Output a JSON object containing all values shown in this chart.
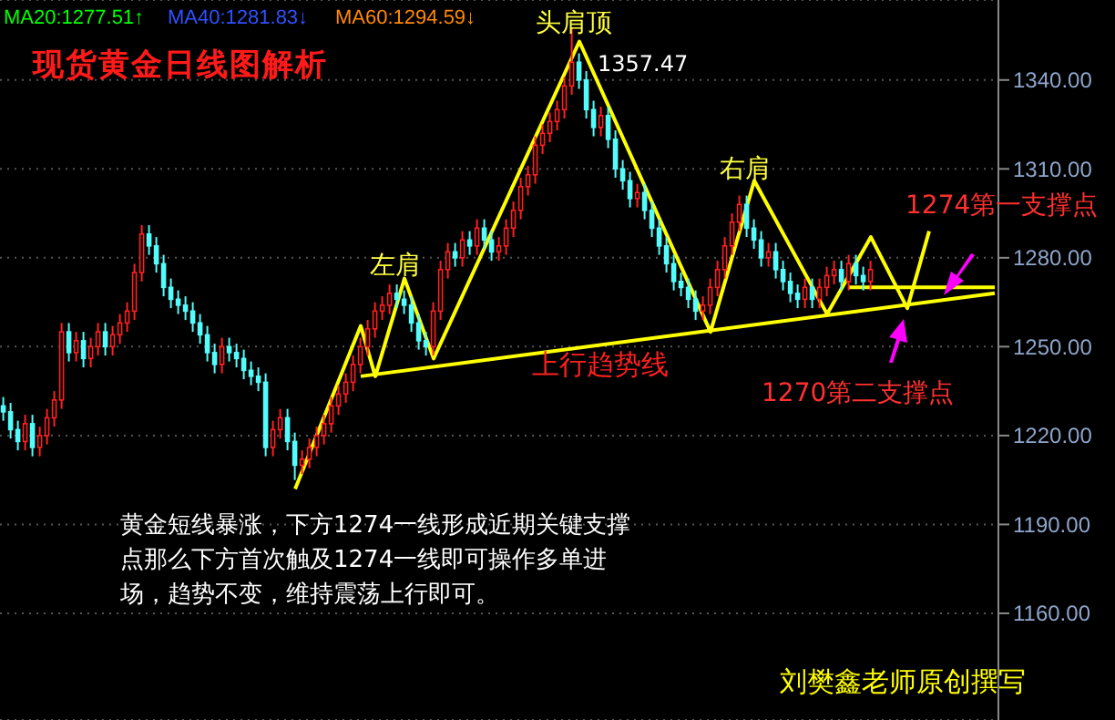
{
  "chart_data": {
    "type": "candlestick",
    "title": "现货黄金日线图解析",
    "annotations": [
      "MA20:1277.51↑",
      "MA40:1281.83↓",
      "MA60:1294.59↓",
      "头肩顶",
      "1357.47",
      "左肩",
      "右肩",
      "上行趋势线",
      "1274第一支撑点",
      "1270第二支撑点",
      "黄金短线暴涨，下方1274一线形成近期关键支撑点那么下方首次触及1274一线即可操作多单进场，趋势不变，维持震荡上行即可。",
      "刘樊鑫老师原创撰写"
    ],
    "categories": [
      null,
      null,
      null,
      null,
      null,
      null,
      null,
      null,
      null,
      null,
      null,
      null,
      null,
      null,
      null,
      null,
      null,
      null,
      null,
      null,
      null,
      null,
      null,
      null,
      null,
      null,
      null,
      null,
      null,
      null,
      null,
      null,
      null,
      null,
      null,
      null,
      null,
      null,
      null,
      null,
      null,
      null,
      null,
      null,
      null,
      null,
      null,
      null,
      null,
      null,
      null,
      null,
      null,
      null,
      null,
      null,
      null,
      null,
      null,
      null,
      null,
      null,
      null,
      null,
      null,
      null,
      null,
      null,
      null,
      null,
      null,
      null,
      null,
      null,
      null,
      null,
      null,
      null,
      null,
      null,
      null,
      null,
      null,
      null,
      null,
      null,
      null,
      null,
      null,
      null,
      null,
      null,
      null,
      null,
      null,
      null,
      null,
      null,
      null,
      null,
      null,
      null,
      null,
      null,
      null,
      null,
      null,
      null,
      null,
      null,
      null,
      null,
      null,
      null,
      null,
      null,
      null,
      null,
      null,
      null,
      null,
      null,
      null,
      null,
      null,
      null,
      null,
      null,
      null,
      null,
      null,
      null,
      null,
      null,
      null,
      null,
      null
    ],
    "ohlc": [
      [
        1230,
        1233,
        1225,
        1228
      ],
      [
        1228,
        1231,
        1219,
        1222
      ],
      [
        1222,
        1225,
        1215,
        1218
      ],
      [
        1218,
        1227,
        1215,
        1224
      ],
      [
        1224,
        1227,
        1213,
        1216
      ],
      [
        1216,
        1223,
        1213,
        1220
      ],
      [
        1220,
        1229,
        1217,
        1226
      ],
      [
        1226,
        1235,
        1223,
        1232
      ],
      [
        1232,
        1258,
        1229,
        1255
      ],
      [
        1255,
        1258,
        1245,
        1248
      ],
      [
        1248,
        1255,
        1245,
        1252
      ],
      [
        1252,
        1255,
        1243,
        1246
      ],
      [
        1246,
        1253,
        1243,
        1250
      ],
      [
        1250,
        1258,
        1247,
        1255
      ],
      [
        1255,
        1258,
        1247,
        1250
      ],
      [
        1250,
        1257,
        1247,
        1254
      ],
      [
        1254,
        1261,
        1251,
        1258
      ],
      [
        1258,
        1265,
        1255,
        1262
      ],
      [
        1262,
        1278,
        1259,
        1275
      ],
      [
        1275,
        1291,
        1272,
        1288
      ],
      [
        1288,
        1291,
        1281,
        1284
      ],
      [
        1284,
        1287,
        1275,
        1278
      ],
      [
        1278,
        1281,
        1267,
        1270
      ],
      [
        1270,
        1273,
        1263,
        1266
      ],
      [
        1266,
        1269,
        1261,
        1264
      ],
      [
        1264,
        1267,
        1259,
        1262
      ],
      [
        1262,
        1265,
        1255,
        1258
      ],
      [
        1258,
        1261,
        1251,
        1254
      ],
      [
        1254,
        1257,
        1245,
        1248
      ],
      [
        1248,
        1251,
        1241,
        1244
      ],
      [
        1244,
        1253,
        1241,
        1250
      ],
      [
        1250,
        1253,
        1245,
        1248
      ],
      [
        1248,
        1251,
        1243,
        1246
      ],
      [
        1246,
        1249,
        1239,
        1242
      ],
      [
        1242,
        1245,
        1237,
        1240
      ],
      [
        1240,
        1243,
        1235,
        1238
      ],
      [
        1238,
        1241,
        1213,
        1216
      ],
      [
        1216,
        1225,
        1213,
        1222
      ],
      [
        1222,
        1229,
        1219,
        1226
      ],
      [
        1226,
        1229,
        1215,
        1218
      ],
      [
        1218,
        1221,
        1205,
        1210
      ],
      [
        1210,
        1215,
        1207,
        1212
      ],
      [
        1212,
        1219,
        1209,
        1216
      ],
      [
        1216,
        1223,
        1213,
        1220
      ],
      [
        1220,
        1227,
        1217,
        1224
      ],
      [
        1224,
        1233,
        1221,
        1230
      ],
      [
        1230,
        1237,
        1227,
        1234
      ],
      [
        1234,
        1241,
        1231,
        1238
      ],
      [
        1238,
        1247,
        1235,
        1244
      ],
      [
        1244,
        1253,
        1241,
        1250
      ],
      [
        1250,
        1259,
        1247,
        1256
      ],
      [
        1256,
        1265,
        1253,
        1262
      ],
      [
        1262,
        1267,
        1259,
        1264
      ],
      [
        1264,
        1271,
        1261,
        1268
      ],
      [
        1268,
        1271,
        1263,
        1266
      ],
      [
        1266,
        1269,
        1261,
        1264
      ],
      [
        1264,
        1267,
        1255,
        1258
      ],
      [
        1258,
        1261,
        1249,
        1252
      ],
      [
        1252,
        1255,
        1247,
        1250
      ],
      [
        1250,
        1265,
        1247,
        1262
      ],
      [
        1262,
        1279,
        1259,
        1276
      ],
      [
        1276,
        1285,
        1273,
        1282
      ],
      [
        1282,
        1285,
        1277,
        1280
      ],
      [
        1280,
        1289,
        1277,
        1286
      ],
      [
        1286,
        1289,
        1281,
        1284
      ],
      [
        1284,
        1293,
        1281,
        1290
      ],
      [
        1290,
        1293,
        1283,
        1286
      ],
      [
        1286,
        1289,
        1279,
        1282
      ],
      [
        1282,
        1287,
        1279,
        1284
      ],
      [
        1284,
        1293,
        1281,
        1290
      ],
      [
        1290,
        1299,
        1287,
        1296
      ],
      [
        1296,
        1307,
        1293,
        1304
      ],
      [
        1304,
        1311,
        1301,
        1308
      ],
      [
        1308,
        1321,
        1305,
        1318
      ],
      [
        1318,
        1325,
        1315,
        1322
      ],
      [
        1322,
        1329,
        1319,
        1326
      ],
      [
        1326,
        1333,
        1323,
        1330
      ],
      [
        1330,
        1341,
        1327,
        1338
      ],
      [
        1338,
        1357.47,
        1335,
        1346
      ],
      [
        1346,
        1349,
        1337,
        1340
      ],
      [
        1340,
        1343,
        1327,
        1330
      ],
      [
        1330,
        1333,
        1321,
        1324
      ],
      [
        1324,
        1331,
        1321,
        1328
      ],
      [
        1328,
        1331,
        1317,
        1320
      ],
      [
        1320,
        1323,
        1307,
        1310
      ],
      [
        1310,
        1313,
        1303,
        1306
      ],
      [
        1306,
        1309,
        1297,
        1300
      ],
      [
        1300,
        1305,
        1297,
        1302
      ],
      [
        1302,
        1305,
        1293,
        1296
      ],
      [
        1296,
        1299,
        1287,
        1290
      ],
      [
        1290,
        1293,
        1281,
        1284
      ],
      [
        1284,
        1287,
        1275,
        1278
      ],
      [
        1278,
        1281,
        1269,
        1272
      ],
      [
        1272,
        1275,
        1267,
        1270
      ],
      [
        1270,
        1273,
        1263,
        1266
      ],
      [
        1266,
        1269,
        1259,
        1262
      ],
      [
        1262,
        1267,
        1259,
        1264
      ],
      [
        1264,
        1273,
        1261,
        1270
      ],
      [
        1270,
        1279,
        1267,
        1276
      ],
      [
        1276,
        1287,
        1273,
        1284
      ],
      [
        1284,
        1295,
        1281,
        1292
      ],
      [
        1292,
        1301,
        1289,
        1298
      ],
      [
        1298,
        1301,
        1287,
        1290
      ],
      [
        1290,
        1293,
        1283,
        1286
      ],
      [
        1286,
        1289,
        1277,
        1280
      ],
      [
        1280,
        1285,
        1277,
        1282
      ],
      [
        1282,
        1285,
        1273,
        1276
      ],
      [
        1276,
        1279,
        1269,
        1272
      ],
      [
        1272,
        1275,
        1265,
        1268
      ],
      [
        1268,
        1271,
        1263,
        1266
      ],
      [
        1266,
        1273,
        1263,
        1270
      ],
      [
        1270,
        1273,
        1263,
        1266
      ],
      [
        1266,
        1273,
        1263,
        1270
      ],
      [
        1270,
        1277,
        1267,
        1274
      ],
      [
        1274,
        1279,
        1271,
        1276
      ],
      [
        1276,
        1279,
        1269,
        1272
      ],
      [
        1272,
        1281,
        1269,
        1278
      ],
      [
        1278,
        1281,
        1271,
        1274
      ],
      [
        1274,
        1277,
        1269,
        1272
      ],
      [
        1272,
        1279,
        1269,
        1276
      ],
      null,
      null,
      null,
      null,
      null,
      null,
      null,
      null,
      null,
      null,
      null,
      null,
      null,
      null,
      null,
      null,
      null
    ],
    "series": [
      {
        "type": "line",
        "color": "#ffff00",
        "values": [
          null,
          null,
          null,
          null,
          null,
          null,
          null,
          null,
          null,
          null,
          null,
          null,
          null,
          null,
          null,
          null,
          null,
          null,
          null,
          null,
          null,
          null,
          null,
          null,
          null,
          null,
          null,
          null,
          null,
          null,
          null,
          null,
          null,
          null,
          null,
          null,
          null,
          null,
          null,
          null,
          1202,
          null,
          null,
          null,
          null,
          null,
          null,
          null,
          null,
          1257,
          null,
          1240,
          null,
          null,
          null,
          1273,
          null,
          null,
          null,
          1246,
          null,
          null,
          null,
          null,
          null,
          null,
          null,
          null,
          null,
          null,
          null,
          null,
          null,
          null,
          null,
          null,
          null,
          null,
          null,
          1353,
          null,
          null,
          null,
          null,
          null,
          null,
          null,
          null,
          null,
          null,
          null,
          null,
          null,
          null,
          null,
          null,
          null,
          1255,
          null,
          null,
          null,
          null,
          null,
          1306,
          null,
          null,
          null,
          null,
          null,
          null,
          null,
          null,
          null,
          1261,
          null,
          null,
          null,
          null,
          null,
          1287,
          null,
          null,
          null,
          null,
          1263,
          null,
          null,
          1289,
          null,
          null,
          null,
          null,
          null,
          null,
          null,
          null,
          null
        ]
      },
      {
        "type": "line",
        "color": "#ffff00",
        "values": [
          null,
          null,
          null,
          null,
          null,
          null,
          null,
          null,
          null,
          null,
          null,
          null,
          null,
          null,
          null,
          null,
          null,
          null,
          null,
          null,
          null,
          null,
          null,
          null,
          null,
          null,
          null,
          null,
          null,
          null,
          null,
          null,
          null,
          null,
          null,
          null,
          null,
          null,
          null,
          null,
          null,
          null,
          null,
          null,
          null,
          null,
          null,
          null,
          null,
          1240,
          null,
          null,
          null,
          null,
          null,
          null,
          null,
          null,
          null,
          null,
          null,
          null,
          null,
          null,
          null,
          null,
          null,
          null,
          null,
          null,
          null,
          null,
          null,
          null,
          null,
          null,
          null,
          null,
          null,
          null,
          null,
          null,
          null,
          null,
          null,
          null,
          null,
          null,
          null,
          null,
          null,
          null,
          null,
          null,
          null,
          null,
          null,
          null,
          null,
          null,
          null,
          null,
          null,
          null,
          null,
          null,
          null,
          null,
          null,
          null,
          null,
          null,
          null,
          null,
          null,
          null,
          null,
          null,
          null,
          null,
          null,
          null,
          null,
          null,
          null,
          null,
          null,
          null,
          null,
          null,
          null,
          null,
          null,
          null,
          null,
          null,
          1268
        ]
      },
      {
        "type": "line",
        "color": "#ffff00",
        "values": [
          null,
          null,
          null,
          null,
          null,
          null,
          null,
          null,
          null,
          null,
          null,
          null,
          null,
          null,
          null,
          null,
          null,
          null,
          null,
          null,
          null,
          null,
          null,
          null,
          null,
          null,
          null,
          null,
          null,
          null,
          null,
          null,
          null,
          null,
          null,
          null,
          null,
          null,
          null,
          null,
          null,
          null,
          null,
          null,
          null,
          null,
          null,
          null,
          null,
          null,
          null,
          null,
          null,
          null,
          null,
          null,
          null,
          null,
          null,
          null,
          null,
          null,
          null,
          null,
          null,
          null,
          null,
          null,
          null,
          null,
          null,
          null,
          null,
          null,
          null,
          null,
          null,
          null,
          null,
          null,
          null,
          null,
          null,
          null,
          null,
          null,
          null,
          null,
          null,
          null,
          null,
          null,
          null,
          null,
          null,
          null,
          null,
          null,
          null,
          null,
          null,
          null,
          null,
          null,
          null,
          null,
          null,
          null,
          null,
          null,
          null,
          null,
          null,
          null,
          null,
          null,
          1270,
          null,
          null,
          null,
          null,
          null,
          null,
          null,
          null,
          null,
          null,
          null,
          null,
          null,
          null,
          null,
          null,
          null,
          null,
          null,
          1270
        ]
      }
    ],
    "ylim": [
      1124,
      1367
    ],
    "yticks": [
      {
        "value": 1160,
        "label": "1160.00"
      },
      {
        "value": 1190,
        "label": "1190.00"
      },
      {
        "value": 1220,
        "label": "1220.00"
      },
      {
        "value": 1250,
        "label": "1250.00"
      },
      {
        "value": 1280,
        "label": "1280.00"
      },
      {
        "value": 1310,
        "label": "1310.00"
      },
      {
        "value": 1340,
        "label": "1340.00"
      }
    ],
    "grid": "y",
    "legend": false,
    "tick_labels": "y"
  }
}
